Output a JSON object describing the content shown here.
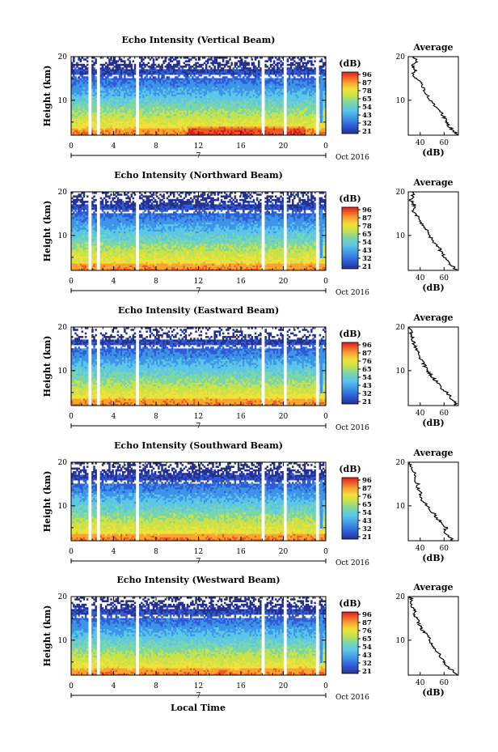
{
  "chart_data": [
    {
      "type": "heatmap",
      "title": "Echo Intensity (Vertical Beam)",
      "ylabel": "Height (km)",
      "xticks": [
        "0",
        "4",
        "8",
        "12",
        "16",
        "20",
        "0"
      ],
      "yticks": [
        "10",
        "20"
      ],
      "date_label": "7",
      "month_label": "Oct 2016",
      "ylim": [
        2,
        20
      ],
      "xlim": [
        0,
        24
      ],
      "colorbar": {
        "unit": "(dB)",
        "ticks": [
          "96",
          "87",
          "78",
          "65",
          "54",
          "43",
          "32",
          "21"
        ]
      },
      "profile": {
        "title": "Average",
        "xlabel": "(dB)",
        "xticks": [
          "40",
          "60"
        ],
        "yticks": [
          "10",
          "20"
        ],
        "xlim": [
          30,
          72
        ],
        "heights": [
          2,
          3,
          4,
          5,
          6,
          7,
          8,
          9,
          10,
          11,
          12,
          13,
          14,
          15,
          16,
          17,
          18,
          19,
          20
        ],
        "values": [
          71,
          68,
          64,
          62,
          60,
          58,
          55,
          52,
          49,
          46,
          44,
          42,
          41,
          36,
          34,
          36,
          33,
          37,
          35
        ]
      }
    },
    {
      "type": "heatmap",
      "title": "Echo Intensity (Northward Beam)",
      "ylabel": "Height (km)",
      "xticks": [
        "0",
        "4",
        "8",
        "12",
        "16",
        "20",
        "0"
      ],
      "yticks": [
        "10",
        "20"
      ],
      "date_label": "7",
      "month_label": "Oct 2016",
      "ylim": [
        2,
        20
      ],
      "xlim": [
        0,
        24
      ],
      "colorbar": {
        "unit": "(dB)",
        "ticks": [
          "96",
          "87",
          "78",
          "65",
          "54",
          "43",
          "32",
          "21"
        ]
      },
      "profile": {
        "title": "Average",
        "xlabel": "(dB)",
        "xticks": [
          "40",
          "60"
        ],
        "yticks": [
          "10",
          "20"
        ],
        "xlim": [
          30,
          72
        ],
        "heights": [
          2,
          3,
          4,
          5,
          6,
          7,
          8,
          9,
          10,
          11,
          12,
          13,
          14,
          15,
          16,
          17,
          18,
          19,
          20
        ],
        "values": [
          70,
          67,
          63,
          60,
          58,
          56,
          53,
          50,
          48,
          46,
          43,
          41,
          40,
          35,
          34,
          35,
          32,
          34,
          33
        ]
      }
    },
    {
      "type": "heatmap",
      "title": "Echo Intensity (Eastward Beam)",
      "ylabel": "Height (km)",
      "xticks": [
        "0",
        "4",
        "8",
        "12",
        "16",
        "20",
        "0"
      ],
      "yticks": [
        "10",
        "20"
      ],
      "date_label": "7",
      "month_label": "Oct 2016",
      "ylim": [
        2,
        20
      ],
      "xlim": [
        0,
        24
      ],
      "colorbar": {
        "unit": "(dB)",
        "ticks": [
          "96",
          "87",
          "76",
          "65",
          "54",
          "43",
          "32",
          "21"
        ]
      },
      "profile": {
        "title": "Average",
        "xlabel": "(dB)",
        "xticks": [
          "40",
          "60"
        ],
        "yticks": [
          "10",
          "20"
        ],
        "xlim": [
          30,
          72
        ],
        "heights": [
          2,
          3,
          4,
          5,
          6,
          7,
          8,
          9,
          10,
          11,
          12,
          13,
          14,
          15,
          16,
          17,
          18,
          19,
          20
        ],
        "values": [
          70,
          68,
          65,
          62,
          58,
          55,
          52,
          49,
          46,
          44,
          42,
          40,
          38,
          37,
          35,
          34,
          33,
          32,
          31
        ]
      }
    },
    {
      "type": "heatmap",
      "title": "Echo Intensity (Southward Beam)",
      "ylabel": "Height (km)",
      "xticks": [
        "0",
        "4",
        "8",
        "12",
        "16",
        "20",
        "0"
      ],
      "yticks": [
        "10",
        "20"
      ],
      "date_label": "7",
      "month_label": "Oct 2016",
      "ylim": [
        2,
        20
      ],
      "xlim": [
        0,
        24
      ],
      "colorbar": {
        "unit": "(dB)",
        "ticks": [
          "96",
          "87",
          "76",
          "65",
          "54",
          "43",
          "32",
          "21"
        ]
      },
      "profile": {
        "title": "Average",
        "xlabel": "(dB)",
        "xticks": [
          "40",
          "60"
        ],
        "yticks": [
          "10",
          "20"
        ],
        "xlim": [
          30,
          72
        ],
        "heights": [
          2,
          3,
          4,
          5,
          6,
          7,
          8,
          9,
          10,
          11,
          12,
          13,
          14,
          15,
          16,
          17,
          18,
          19,
          20
        ],
        "values": [
          68,
          63,
          60,
          62,
          58,
          55,
          52,
          49,
          46,
          43,
          40,
          41,
          38,
          38,
          36,
          35,
          35,
          33,
          31
        ]
      }
    },
    {
      "type": "heatmap",
      "title": "Echo Intensity (Westward Beam)",
      "ylabel": "Height (km)",
      "xticks": [
        "0",
        "4",
        "8",
        "12",
        "16",
        "20",
        "0"
      ],
      "yticks": [
        "10",
        "20"
      ],
      "date_label": "7",
      "month_label": "Oct 2016",
      "ylim": [
        2,
        20
      ],
      "xlim": [
        0,
        24
      ],
      "colorbar": {
        "unit": "(dB)",
        "ticks": [
          "96",
          "87",
          "76",
          "65",
          "54",
          "43",
          "32",
          "21"
        ]
      },
      "profile": {
        "title": "Average",
        "xlabel": "(dB)",
        "xticks": [
          "40",
          "60"
        ],
        "yticks": [
          "10",
          "20"
        ],
        "xlim": [
          30,
          72
        ],
        "heights": [
          2,
          3,
          4,
          5,
          6,
          7,
          8,
          9,
          10,
          11,
          12,
          13,
          14,
          15,
          16,
          17,
          18,
          19,
          20
        ],
        "values": [
          70,
          67,
          63,
          60,
          58,
          56,
          53,
          50,
          48,
          46,
          43,
          40,
          39,
          37,
          35,
          35,
          33,
          33,
          32
        ]
      }
    }
  ],
  "xlabel": "Local Time",
  "colors": {
    "scale": [
      "#26318f",
      "#2f5bd6",
      "#3c95e6",
      "#5cc6e8",
      "#7bd6a8",
      "#c8e24a",
      "#f2e13a",
      "#f7a531",
      "#ee5a24",
      "#d61f26"
    ]
  }
}
